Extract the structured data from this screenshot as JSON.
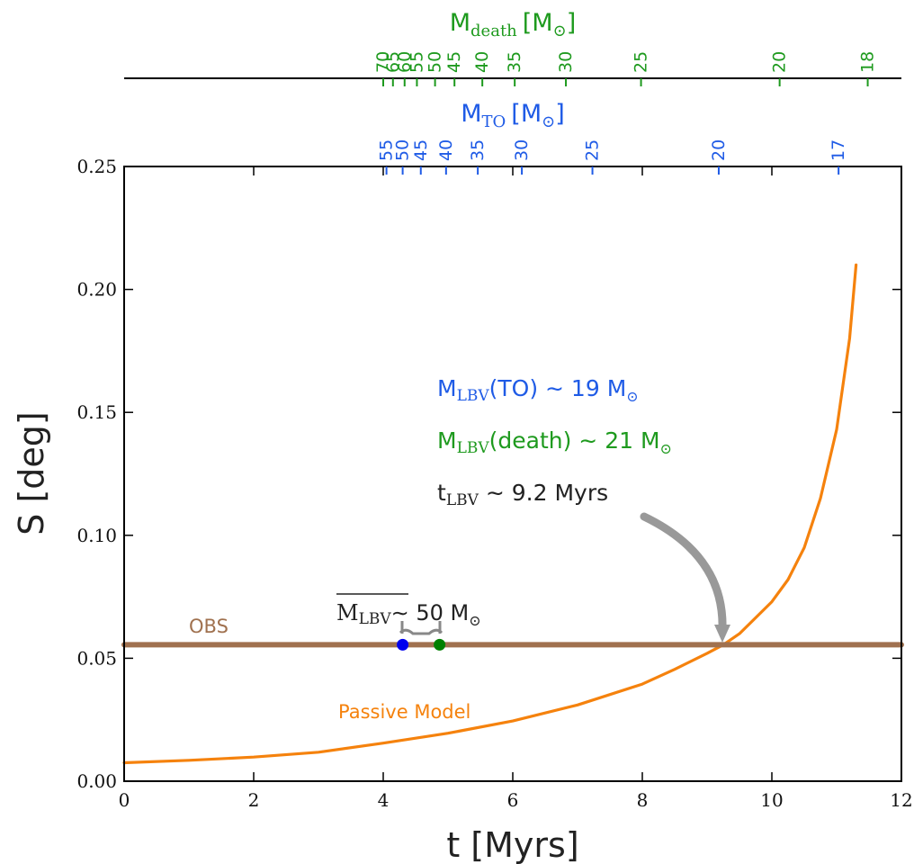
{
  "chart_data": {
    "type": "line",
    "xlabel": "t [Myrs]",
    "ylabel": "S [deg]",
    "xlim": [
      0,
      12
    ],
    "ylim": [
      0,
      0.25
    ],
    "x_ticks": [
      0,
      2,
      4,
      6,
      8,
      10,
      12
    ],
    "x_tick_labels": [
      "0",
      "2",
      "4",
      "6",
      "8",
      "10",
      "12"
    ],
    "y_ticks": [
      0.0,
      0.05,
      0.1,
      0.15,
      0.2,
      0.25
    ],
    "y_tick_labels": [
      "0.00",
      "0.05",
      "0.10",
      "0.15",
      "0.20",
      "0.25"
    ],
    "grid": false,
    "series": [
      {
        "name": "Passive Model",
        "color": "#f5820d",
        "x": [
          0,
          1,
          2,
          3,
          4,
          5,
          6,
          7,
          8,
          8.5,
          9,
          9.25,
          9.5,
          10,
          10.25,
          10.5,
          10.75,
          11,
          11.2,
          11.3
        ],
        "y": [
          0.0075,
          0.0085,
          0.0098,
          0.0118,
          0.0155,
          0.0195,
          0.0245,
          0.031,
          0.0395,
          0.0455,
          0.052,
          0.0555,
          0.06,
          0.073,
          0.082,
          0.095,
          0.115,
          0.143,
          0.18,
          0.21
        ]
      },
      {
        "name": "OBS",
        "color": "#a0714f",
        "x": [
          0,
          12
        ],
        "y": [
          0.0555,
          0.0555
        ]
      }
    ],
    "points": [
      {
        "x": 4.3,
        "y": 0.0555,
        "color": "#0000ee"
      },
      {
        "x": 4.87,
        "y": 0.0555,
        "color": "#008000"
      }
    ],
    "top_axes": [
      {
        "label_main": "M",
        "label_sub": "TO",
        "label_unit": "[M",
        "label_close": "]",
        "color": "#1f5be6",
        "ticks": [
          {
            "label": "55",
            "x": 4.05
          },
          {
            "label": "50",
            "x": 4.3
          },
          {
            "label": "45",
            "x": 4.58
          },
          {
            "label": "40",
            "x": 4.97
          },
          {
            "label": "35",
            "x": 5.46
          },
          {
            "label": "30",
            "x": 6.14
          },
          {
            "label": "25",
            "x": 7.23
          },
          {
            "label": "20",
            "x": 9.18
          },
          {
            "label": "17",
            "x": 11.03
          }
        ]
      },
      {
        "label_main": "M",
        "label_sub": "death",
        "label_unit": "[M",
        "label_close": "]",
        "color": "#1e9a1e",
        "ticks": [
          {
            "label": "70",
            "x": 4.0
          },
          {
            "label": "65",
            "x": 4.15
          },
          {
            "label": "60",
            "x": 4.33
          },
          {
            "label": "55",
            "x": 4.52
          },
          {
            "label": "50",
            "x": 4.8
          },
          {
            "label": "45",
            "x": 5.1
          },
          {
            "label": "40",
            "x": 5.53
          },
          {
            "label": "35",
            "x": 6.03
          },
          {
            "label": "30",
            "x": 6.82
          },
          {
            "label": "25",
            "x": 7.98
          },
          {
            "label": "20",
            "x": 10.12
          },
          {
            "label": "18",
            "x": 11.48
          }
        ]
      }
    ],
    "annotations": {
      "obs_label": "OBS",
      "passive_label": "Passive Model",
      "mass_lbv_main": "M",
      "mass_lbv_sub": "LBV",
      "mass_lbv_rest": "∼ 50 M",
      "m_lbv_to_main": "M",
      "m_lbv_to_sub": "LBV",
      "m_lbv_to_rest": "(TO) ∼ 19 M",
      "m_lbv_death_main": "M",
      "m_lbv_death_sub": "LBV",
      "m_lbv_death_rest": "(death) ∼ 21 M",
      "t_lbv_main": "t",
      "t_lbv_sub": "LBV",
      "t_lbv_rest": "∼ 9.2 Myrs",
      "sun_symbol": "⊙",
      "arrow_color": "#999999",
      "to_color": "#1f5be6",
      "death_color": "#1e9a1e",
      "text_color": "#222222"
    }
  }
}
